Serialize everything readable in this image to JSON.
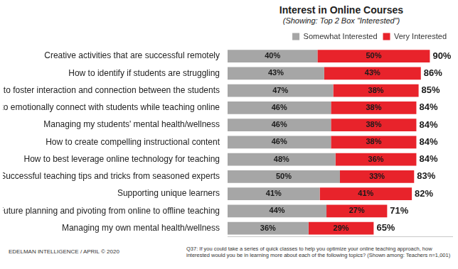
{
  "chart_data": {
    "type": "bar",
    "orientation": "horizontal",
    "stacked": true,
    "title": "Interest in Online Courses",
    "subtitle": "(Showing: Top 2 Box \"Interested\")",
    "categories": [
      "Creative activities that are successful remotely",
      "How to identify if students are struggling",
      "How to foster interaction and connection between the students",
      "How to emotionally connect with students while teaching online",
      "Managing my students' mental health/wellness",
      "How to create compelling instructional content",
      "How to best leverage online technology for teaching",
      "Successful teaching tips and tricks from seasoned experts",
      "Supporting unique learners",
      "Future planning and pivoting from online to offline teaching",
      "Managing my own mental health/wellness"
    ],
    "series": [
      {
        "name": "Somewhat Interested",
        "color": "#a6a6a6",
        "values": [
          40,
          43,
          47,
          46,
          46,
          46,
          48,
          50,
          41,
          44,
          36
        ],
        "value_labels": [
          "40%",
          "43%",
          "47%",
          "46%",
          "46%",
          "46%",
          "48%",
          "50%",
          "41%",
          "44%",
          "36%"
        ]
      },
      {
        "name": "Very Interested",
        "color": "#e8232b",
        "values": [
          50,
          43,
          38,
          38,
          38,
          38,
          36,
          33,
          41,
          27,
          29
        ],
        "value_labels": [
          "50%",
          "43%",
          "38%",
          "38%",
          "38%",
          "38%",
          "36%",
          "33%",
          "41%",
          "27%",
          "29%"
        ]
      }
    ],
    "totals": [
      90,
      86,
      85,
      84,
      84,
      84,
      84,
      83,
      82,
      71,
      65
    ],
    "total_labels": [
      "90%",
      "86%",
      "85%",
      "84%",
      "84%",
      "84%",
      "84%",
      "83%",
      "82%",
      "71%",
      "65%"
    ],
    "xlim": [
      0,
      100
    ],
    "grid": false,
    "legend": "top-right",
    "data_labels": true,
    "tick_labels": "y",
    "source": "EDELMAN INTELLIGENCE / APRIL © 2020",
    "note": "Q37: If you could take a series of quick classes to help you optimize your online teaching approach, how interested would you be in learning more about each of the following topics? (Shown among: Teachers n=1,001)"
  }
}
